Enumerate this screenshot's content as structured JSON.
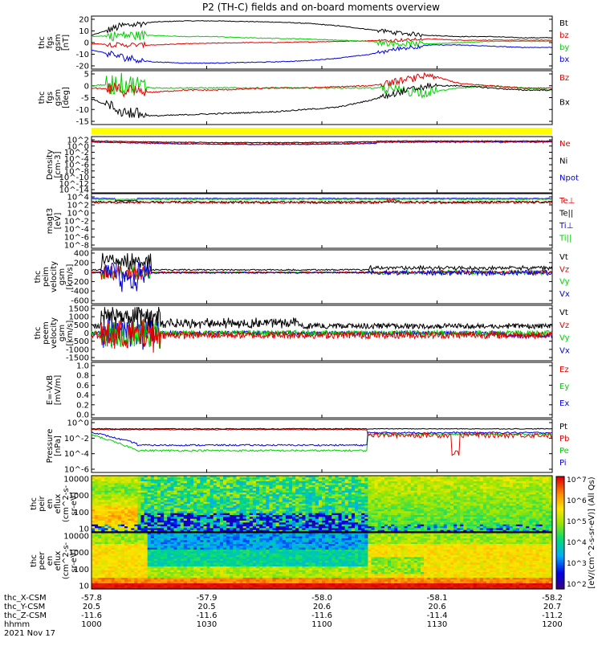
{
  "title": "P2 (TH-C) fields and on-board moments overview",
  "colors": {
    "black": "#000000",
    "red": "#e00000",
    "green": "#00d000",
    "blue": "#0000e0",
    "yellow": "#ffff00"
  },
  "panels": [
    {
      "id": "p1",
      "ylabel": [
        "thc",
        "fgs",
        "gsm",
        "[nT]"
      ],
      "ticks": [
        "20",
        "10",
        "0",
        "-10",
        "-20"
      ],
      "legend": [
        {
          "text": "Bt",
          "color": "#000000"
        },
        {
          "text": "bz",
          "color": "#e00000"
        },
        {
          "text": "by",
          "color": "#00d000"
        },
        {
          "text": "bx",
          "color": "#0000e0"
        }
      ]
    },
    {
      "id": "p2",
      "ylabel": [
        "thc",
        "fgs",
        "gsm",
        "[deg]"
      ],
      "ticks": [
        "5",
        "0",
        "-5",
        "-10",
        "-15"
      ],
      "legend": [
        {
          "text": "Bz",
          "color": "#e00000"
        },
        {
          "text": "Bx",
          "color": "#000000"
        }
      ]
    },
    {
      "id": "p3",
      "ylabel": [
        "Density",
        "[cm-3]"
      ],
      "ticks": [
        "10^2",
        "10^0",
        "10^-2",
        "10^-4",
        "10^-6",
        "10^-8",
        "10^-10",
        "10^-12",
        "10^-14"
      ],
      "legend": [
        {
          "text": "Ne",
          "color": "#e00000"
        },
        {
          "text": "Ni",
          "color": "#000000"
        },
        {
          "text": "Npot",
          "color": "#0000e0"
        }
      ]
    },
    {
      "id": "p4",
      "ylabel": [
        "magt3",
        "[eV]"
      ],
      "ticks": [
        "10^4",
        "10^2",
        "10^0",
        "10^-2",
        "10^-4",
        "10^-6",
        "10^-8"
      ],
      "legend": [
        {
          "text": "Te⊥",
          "color": "#e00000"
        },
        {
          "text": "Te||",
          "color": "#000000"
        },
        {
          "text": "Ti⊥",
          "color": "#0000e0"
        },
        {
          "text": "Ti||",
          "color": "#00d000"
        }
      ]
    },
    {
      "id": "p5",
      "ylabel": [
        "thc",
        "peim",
        "velocity",
        "gsm",
        "[km/s]"
      ],
      "ticks": [
        "400",
        "200",
        "0",
        "-200",
        "-400",
        "-600"
      ],
      "legend": [
        {
          "text": "Vt",
          "color": "#000000"
        },
        {
          "text": "Vz",
          "color": "#e00000"
        },
        {
          "text": "Vy",
          "color": "#00d000"
        },
        {
          "text": "Vx",
          "color": "#0000e0"
        }
      ]
    },
    {
      "id": "p6",
      "ylabel": [
        "thc",
        "peem",
        "velocity",
        "gsm",
        "[km/s]"
      ],
      "ticks": [
        "1500",
        "1000",
        "500",
        "0",
        "-500",
        "-1000",
        "-1500"
      ],
      "legend": [
        {
          "text": "Vt",
          "color": "#000000"
        },
        {
          "text": "Vz",
          "color": "#e00000"
        },
        {
          "text": "Vy",
          "color": "#00d000"
        },
        {
          "text": "Vx",
          "color": "#0000e0"
        }
      ]
    },
    {
      "id": "p7",
      "ylabel": [
        "E=-VxB",
        "[mV/m]"
      ],
      "ticks": [
        "1.0",
        "0.8",
        "0.6",
        "0.4",
        "0.2",
        "0.0"
      ],
      "legend": [
        {
          "text": "Ez",
          "color": "#e00000"
        },
        {
          "text": "Ey",
          "color": "#00d000"
        },
        {
          "text": "Ex",
          "color": "#0000e0"
        }
      ]
    },
    {
      "id": "p8",
      "ylabel": [
        "Pressure",
        "[nPa]"
      ],
      "ticks": [
        "10^0",
        "10^-2",
        "10^-4",
        "10^-6"
      ],
      "legend": [
        {
          "text": "Pt",
          "color": "#000000"
        },
        {
          "text": "Pb",
          "color": "#e00000"
        },
        {
          "text": "Pe",
          "color": "#00d000"
        },
        {
          "text": "Pi",
          "color": "#0000e0"
        }
      ]
    },
    {
      "id": "p9",
      "ylabel": [
        "thc",
        "peir",
        "en",
        "eflux",
        "(cm^2-s-",
        "sr-eV)"
      ],
      "ticks": [
        "10000",
        "1000",
        "100",
        "10"
      ]
    },
    {
      "id": "p10",
      "ylabel": [
        "thc",
        "peer",
        "en",
        "eflux",
        "(cm^2-s-",
        "sr-eV)"
      ],
      "ticks": [
        "10000",
        "1000",
        "100",
        "10"
      ]
    }
  ],
  "colorbar": {
    "ticks": [
      "10^7",
      "10^6",
      "10^5",
      "10^4",
      "10^3",
      "10^2"
    ],
    "label": "[eV/(cm^2-s-sr-eV)] (All Qs)"
  },
  "xaxis": {
    "rows": [
      {
        "label": "thc_X-CSM",
        "values": [
          "-57.8",
          "-57.9",
          "-58.0",
          "-58.1",
          "-58.2"
        ]
      },
      {
        "label": "thc_Y-CSM",
        "values": [
          "20.5",
          "20.5",
          "20.6",
          "20.6",
          "20.7"
        ]
      },
      {
        "label": "thc_Z-CSM",
        "values": [
          "-11.6",
          "-11.6",
          "-11.6",
          "-11.4",
          "-11.2"
        ]
      },
      {
        "label": "hhmm",
        "values": [
          "1000",
          "1030",
          "1100",
          "1130",
          "1200"
        ]
      }
    ],
    "date": "2021 Nov 17"
  },
  "chart_data": {
    "type": "line",
    "title": "P2 (TH-C) fields and on-board moments overview",
    "x_time_range": [
      "1000",
      "1200"
    ],
    "series_summary": [
      {
        "panel": "thc fgs gsm [nT]",
        "series": [
          {
            "name": "Bt",
            "approx": [
              6,
              15,
              17,
              18,
              18,
              17,
              16,
              10,
              6,
              5,
              4
            ]
          },
          {
            "name": "bz",
            "approx": [
              -1,
              -2,
              -1,
              0,
              0,
              0,
              1,
              2,
              4,
              3,
              2
            ]
          },
          {
            "name": "by",
            "approx": [
              5,
              7,
              6,
              5,
              4,
              3,
              2,
              0,
              -2,
              -1,
              1
            ]
          },
          {
            "name": "bx",
            "approx": [
              -5,
              -12,
              -16,
              -17,
              -16,
              -15,
              -13,
              -6,
              -1,
              -2,
              -4
            ]
          }
        ]
      },
      {
        "panel": "thc fgs gsm [deg]",
        "series": [
          {
            "name": "Bz",
            "approx": [
              0,
              -1,
              -2,
              -1,
              -1,
              0,
              0,
              2,
              6,
              1,
              0
            ]
          },
          {
            "name": "Bx",
            "approx": [
              -5,
              -12,
              -13,
              -12,
              -11,
              -10,
              -8,
              -2,
              2,
              1,
              0
            ]
          }
        ]
      }
    ]
  }
}
